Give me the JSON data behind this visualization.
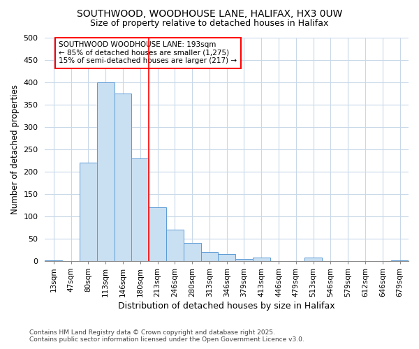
{
  "title_line1": "SOUTHWOOD, WOODHOUSE LANE, HALIFAX, HX3 0UW",
  "title_line2": "Size of property relative to detached houses in Halifax",
  "xlabel": "Distribution of detached houses by size in Halifax",
  "ylabel": "Number of detached properties",
  "categories": [
    "13sqm",
    "47sqm",
    "80sqm",
    "113sqm",
    "146sqm",
    "180sqm",
    "213sqm",
    "246sqm",
    "280sqm",
    "313sqm",
    "346sqm",
    "379sqm",
    "413sqm",
    "446sqm",
    "479sqm",
    "513sqm",
    "546sqm",
    "579sqm",
    "612sqm",
    "646sqm",
    "679sqm"
  ],
  "values": [
    2,
    0,
    220,
    400,
    375,
    230,
    120,
    70,
    40,
    20,
    15,
    5,
    7,
    0,
    0,
    7,
    0,
    0,
    0,
    0,
    2
  ],
  "bar_color": "#c9dff2",
  "bar_edge_color": "#5b9bd5",
  "marker_color": "red",
  "annotation_text": "SOUTHWOOD WOODHOUSE LANE: 193sqm\n← 85% of detached houses are smaller (1,275)\n15% of semi-detached houses are larger (217) →",
  "annotation_box_color": "white",
  "annotation_box_edge_color": "red",
  "ylim": [
    0,
    500
  ],
  "yticks": [
    0,
    50,
    100,
    150,
    200,
    250,
    300,
    350,
    400,
    450,
    500
  ],
  "footer_line1": "Contains HM Land Registry data © Crown copyright and database right 2025.",
  "footer_line2": "Contains public sector information licensed under the Open Government Licence v3.0.",
  "bg_color": "#ffffff",
  "plot_bg_color": "#ffffff",
  "grid_color": "#c8d8e8"
}
